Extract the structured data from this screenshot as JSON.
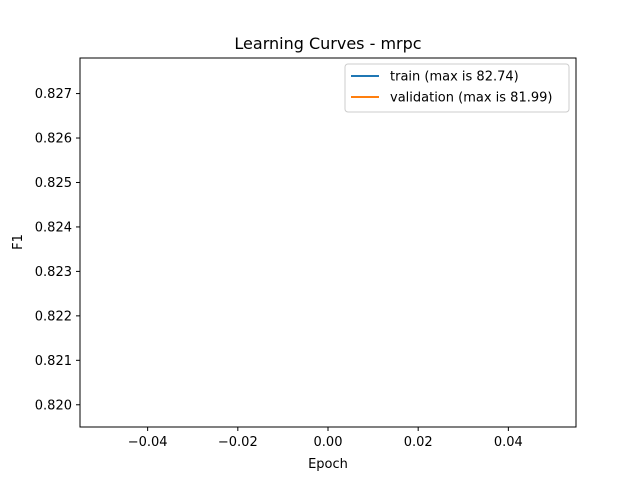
{
  "chart_data": {
    "type": "line",
    "title": "Learning Curves - mrpc",
    "xlabel": "Epoch",
    "ylabel": "F1",
    "xlim": [
      -0.055,
      0.055
    ],
    "ylim": [
      0.8195,
      0.8278
    ],
    "xticks": [
      -0.04,
      -0.02,
      0.0,
      0.02,
      0.04
    ],
    "xtick_labels": [
      "−0.04",
      "−0.02",
      "0.00",
      "0.02",
      "0.04"
    ],
    "yticks": [
      0.82,
      0.821,
      0.822,
      0.823,
      0.824,
      0.825,
      0.826,
      0.827
    ],
    "ytick_labels": [
      "0.820",
      "0.821",
      "0.822",
      "0.823",
      "0.824",
      "0.825",
      "0.826",
      "0.827"
    ],
    "grid": false,
    "legend_position": "top-right",
    "series": [
      {
        "name": "train (max is 82.74)",
        "color": "#1f77b4",
        "x": [
          0
        ],
        "y": [
          0.8274
        ]
      },
      {
        "name": "validation (max is 81.99)",
        "color": "#ff7f0e",
        "x": [
          0
        ],
        "y": [
          0.8199
        ]
      }
    ]
  }
}
